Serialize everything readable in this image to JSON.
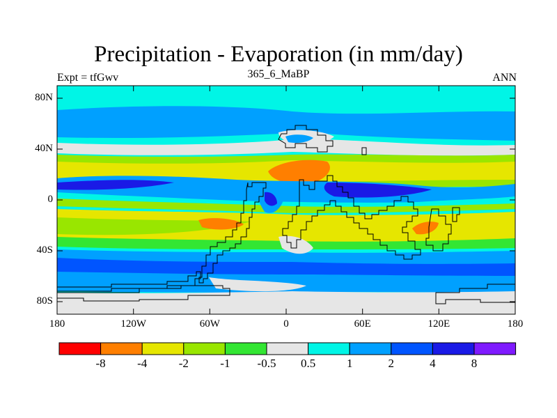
{
  "title": "Precipitation - Evaporation (in mm/day)",
  "subtitle": "365_6_MaBP",
  "left_string": "Expt = tfGwv",
  "right_string": "ANN",
  "y_ticks": [
    "80N",
    "40N",
    "0",
    "40S",
    "80S"
  ],
  "x_ticks": [
    "180",
    "120W",
    "60W",
    "0",
    "60E",
    "120E",
    "180"
  ],
  "colorbar": {
    "colors": [
      "#ff0000",
      "#ff7f00",
      "#e6e600",
      "#99e600",
      "#33e633",
      "#e6e6e6",
      "#00f5e6",
      "#00a0ff",
      "#0055ff",
      "#1a1ae6",
      "#7f1aff"
    ],
    "labels": [
      "-8",
      "-4",
      "-2",
      "-1",
      "-0.5",
      "0.5",
      "1",
      "2",
      "4",
      "8"
    ]
  },
  "map_colors": {
    "ocean_bg": "#00f5e6",
    "light": "#00a0ff",
    "medium": "#0055ff",
    "dark": "#1a1ae6",
    "grey": "#e6e6e6",
    "yellow": "#e6e600",
    "lime": "#99e600",
    "green": "#33e633",
    "orange": "#ff7f00"
  }
}
